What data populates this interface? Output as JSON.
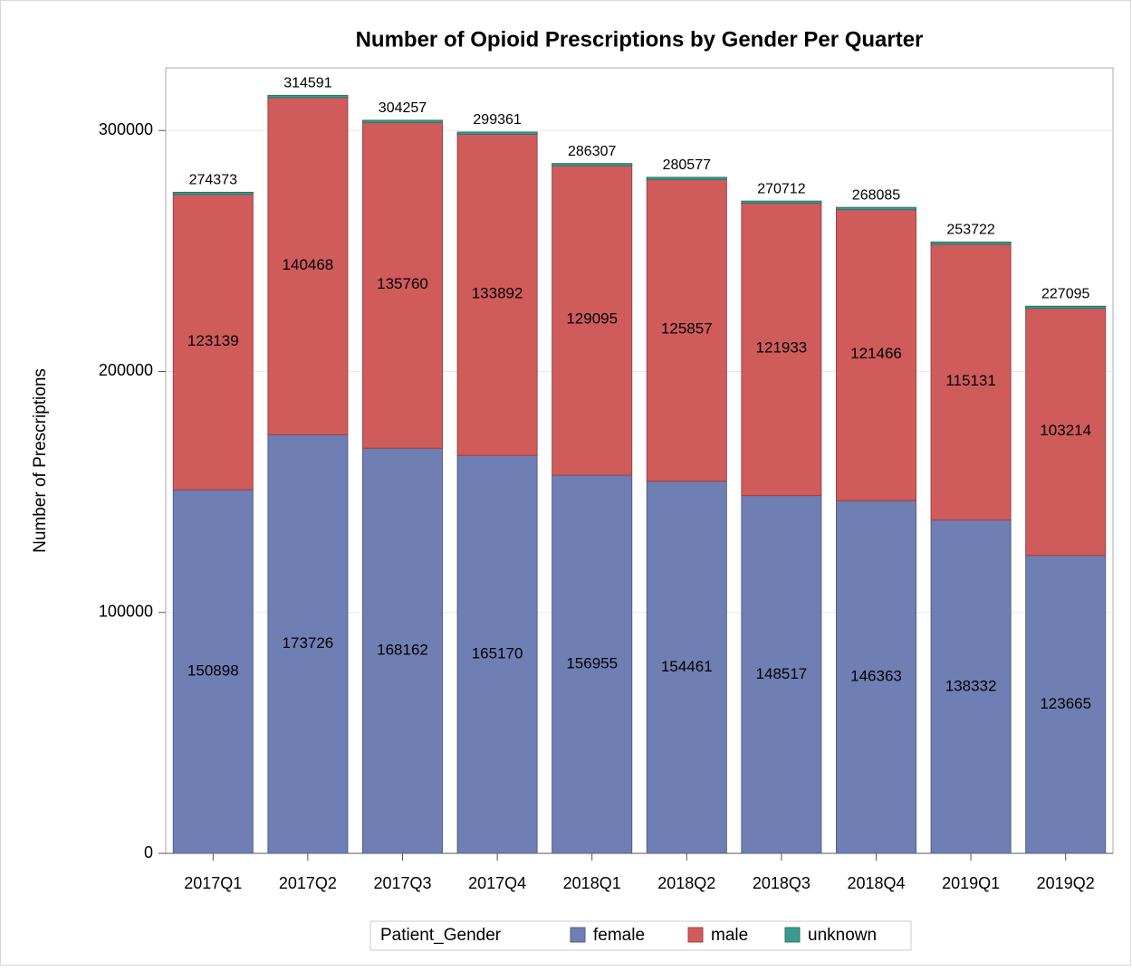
{
  "chart_data": {
    "type": "stacked_bar",
    "title": "Number of Opioid Prescriptions by Gender Per Quarter",
    "y_label": "Number of Prescriptions",
    "legend_title": "Patient_Gender",
    "categories": [
      "2017Q1",
      "2017Q2",
      "2017Q3",
      "2017Q4",
      "2018Q1",
      "2018Q2",
      "2018Q3",
      "2018Q4",
      "2019Q1",
      "2019Q2"
    ],
    "series": [
      {
        "name": "female",
        "color": "#6f7eb3",
        "values": [
          150898,
          173726,
          168162,
          165170,
          156955,
          154461,
          148517,
          146363,
          138332,
          123665
        ]
      },
      {
        "name": "male",
        "color": "#d05b5b",
        "values": [
          123139,
          140468,
          135760,
          133892,
          129095,
          125857,
          121933,
          121466,
          115131,
          103214
        ]
      },
      {
        "name": "unknown",
        "color": "#3a9a8c",
        "values": [
          336,
          397,
          335,
          299,
          257,
          259,
          262,
          256,
          259,
          216
        ]
      }
    ],
    "totals": [
      274373,
      314591,
      304257,
      299361,
      286307,
      280577,
      270712,
      268085,
      253722,
      227095
    ],
    "label_series": [
      0,
      1
    ],
    "ylim": [
      0,
      326000
    ],
    "yticks": [
      0,
      100000,
      200000,
      300000
    ],
    "grid": true
  }
}
